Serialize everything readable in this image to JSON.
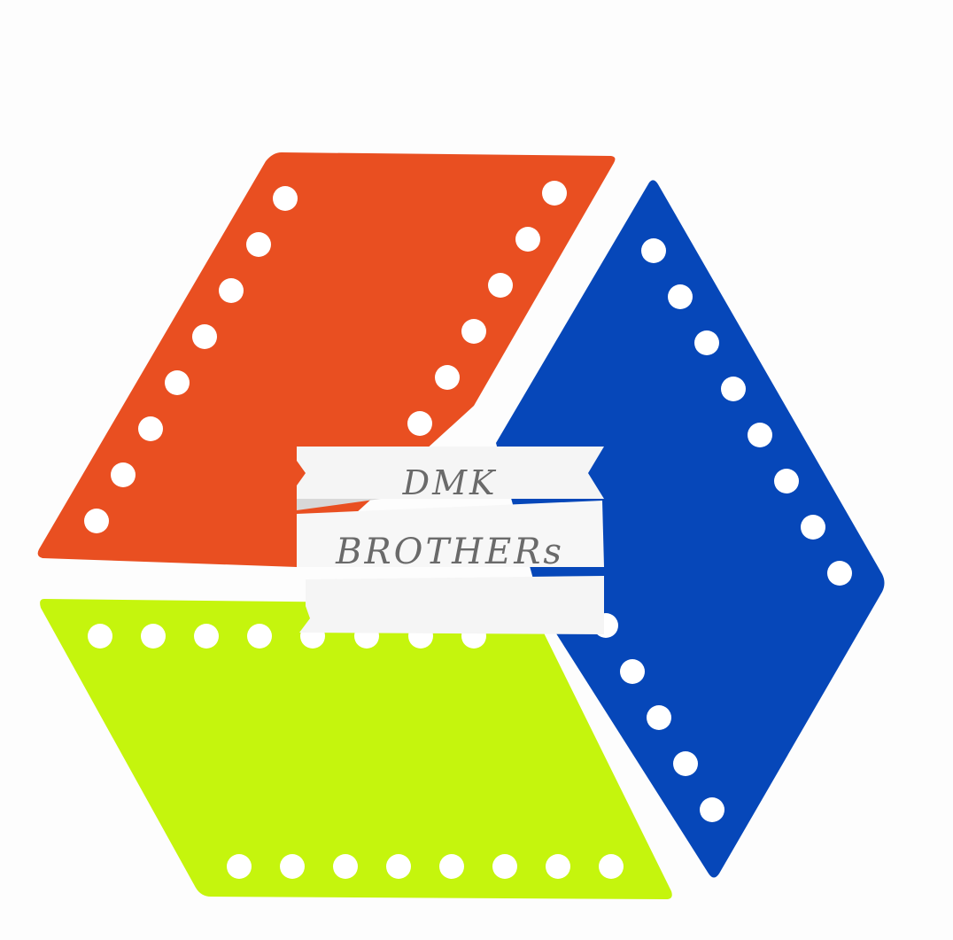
{
  "logo": {
    "line1": "DMK",
    "line2": "BROTHERs",
    "colors": {
      "orange_strip": "#e94f21",
      "blue_strip": "#0647b9",
      "lime_strip": "#c5f50d",
      "banner": "#f5f5f5",
      "text": "#6a6a6a",
      "background": "#fdfdfd"
    },
    "icon": "film-strip-hexagon-logo"
  }
}
